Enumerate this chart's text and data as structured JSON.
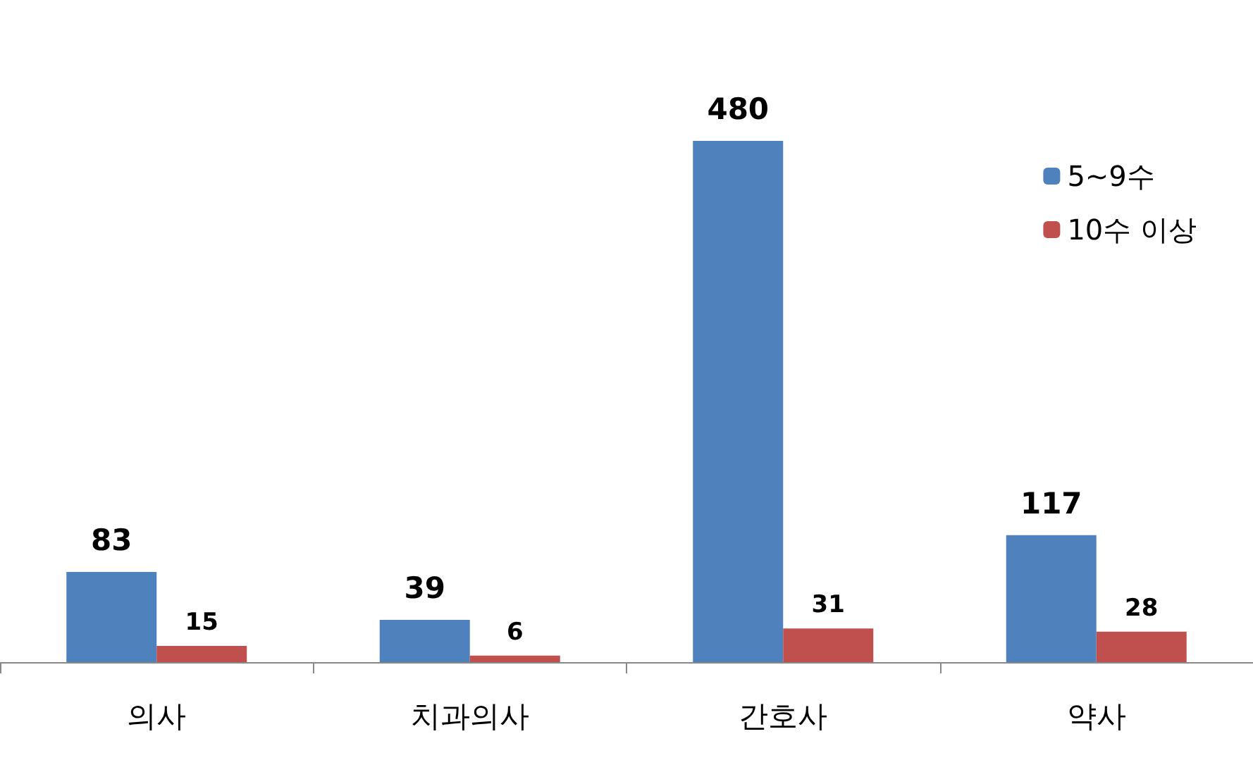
{
  "chart_data": {
    "type": "bar",
    "categories": [
      "의사",
      "치과의사",
      "간호사",
      "약사"
    ],
    "series": [
      {
        "name": "5~9수",
        "color": "#4f81bd",
        "values": [
          83,
          39,
          480,
          117
        ]
      },
      {
        "name": "10수 이상",
        "color": "#c0504d",
        "values": [
          15,
          6,
          31,
          28
        ]
      }
    ],
    "data_labels": true,
    "legend": "top right"
  }
}
